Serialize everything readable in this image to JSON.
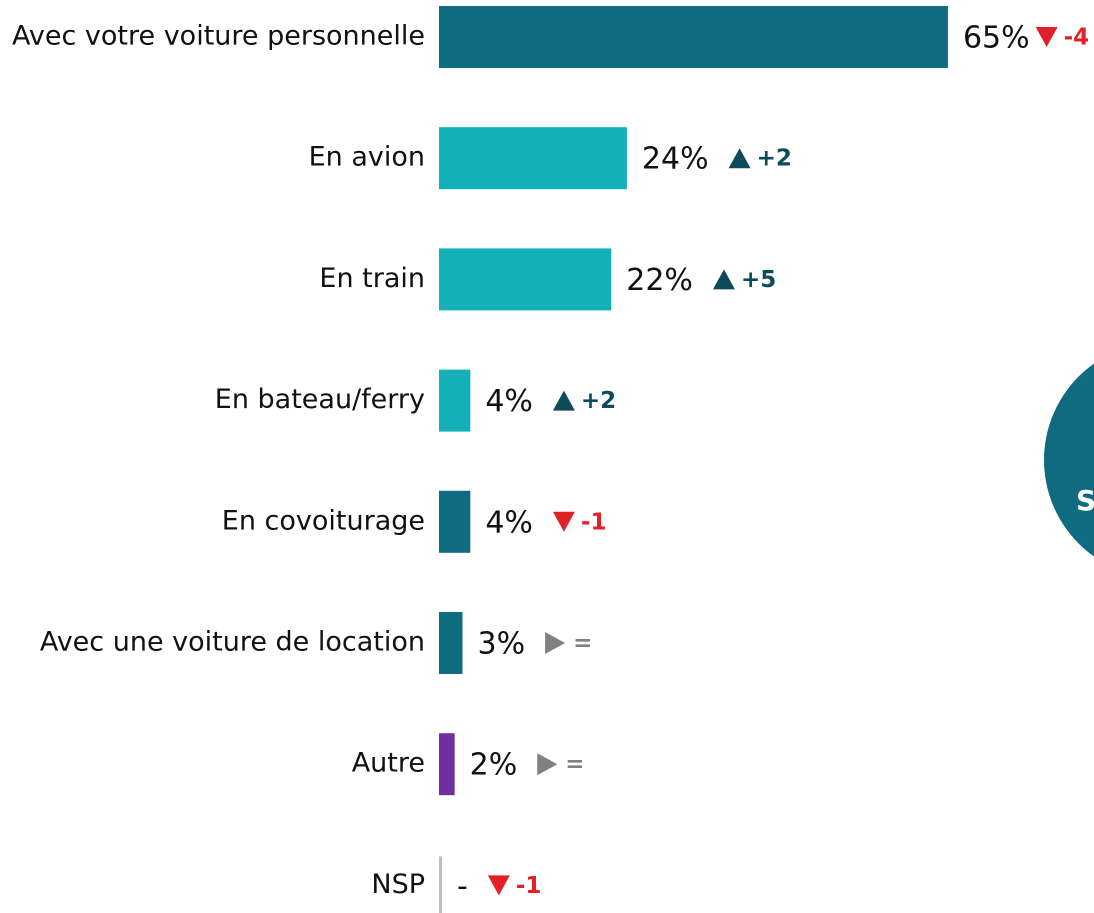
{
  "chart_data": {
    "type": "bar",
    "orientation": "horizontal",
    "categories": [
      "Avec votre voiture personnelle",
      "En avion",
      "En train",
      "En bateau/ferry",
      "En covoiturage",
      "Avec une voiture de location",
      "Autre",
      "NSP"
    ],
    "values": [
      65,
      24,
      22,
      4,
      4,
      3,
      2,
      null
    ],
    "value_labels": [
      "65%",
      "24%",
      "22%",
      "4%",
      "4%",
      "3%",
      "2%",
      "-"
    ],
    "colors": [
      "#0f6b80",
      "#13b0b8",
      "#13b0b8",
      "#13b0b8",
      "#0f6b80",
      "#0f6b80",
      "#7030a0",
      "#bfbfbf"
    ],
    "changes": [
      -4,
      2,
      5,
      2,
      -1,
      0,
      0,
      -1
    ],
    "change_labels": [
      "-4",
      "+2",
      "+5",
      "+2",
      "-1",
      "=",
      "=",
      "-1"
    ],
    "change_colors": {
      "up": "#0d4a5c",
      "down": "#e02127",
      "same": "#808080"
    },
    "xlim": [
      0,
      100
    ],
    "badge_text": "S"
  }
}
